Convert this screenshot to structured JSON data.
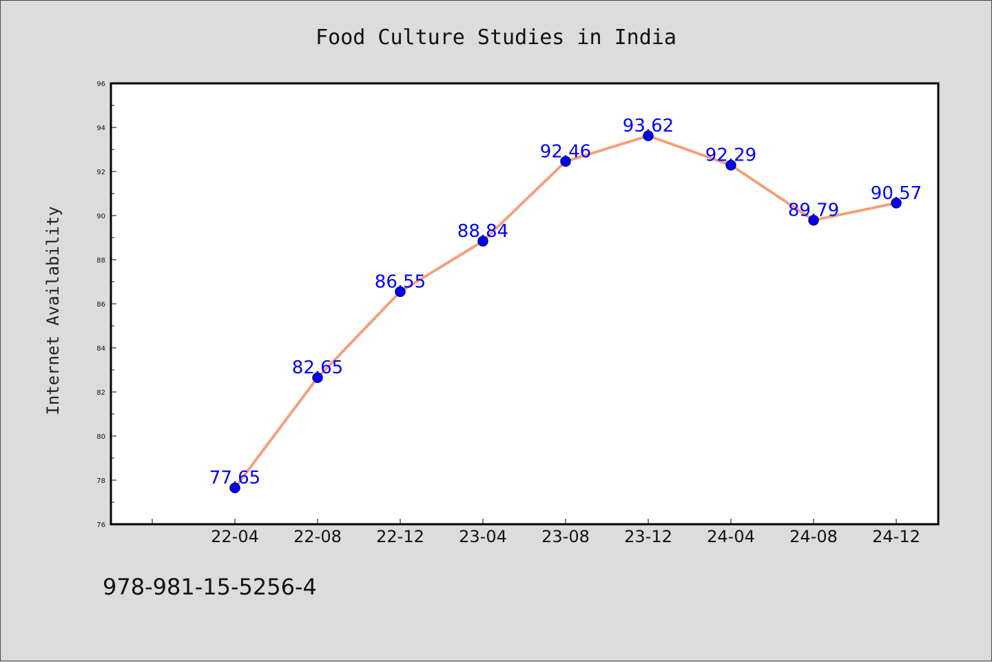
{
  "chart_data": {
    "type": "line",
    "title": "Food Culture Studies in India",
    "xlabel": "",
    "ylabel": "Internet Availability",
    "categories": [
      "22-04",
      "22-08",
      "22-12",
      "23-04",
      "23-08",
      "23-12",
      "24-04",
      "24-08",
      "24-12"
    ],
    "series": [
      {
        "values": [
          77.65,
          82.65,
          86.55,
          88.84,
          92.46,
          93.62,
          92.29,
          89.79,
          90.57
        ],
        "data_labels": [
          "77.65",
          "82.65",
          "86.55",
          "88.84",
          "92.46",
          "93.62",
          "92.29",
          "89.79",
          "90.57"
        ]
      }
    ],
    "ylim": [
      76,
      96
    ],
    "yticks": [
      "76",
      "78",
      "80",
      "82",
      "84",
      "86",
      "88",
      "90",
      "92",
      "94",
      "96"
    ],
    "grid": false,
    "legend": "none",
    "colors": {
      "line": "#f4a07a",
      "marker": "#0000ee",
      "marker_edge": "#00008b",
      "data_label": "#0000ff",
      "plot_background": "#ffffff",
      "figure_background": "#dcdcdc"
    }
  },
  "footer": {
    "code": "978-981-15-5256-4"
  }
}
